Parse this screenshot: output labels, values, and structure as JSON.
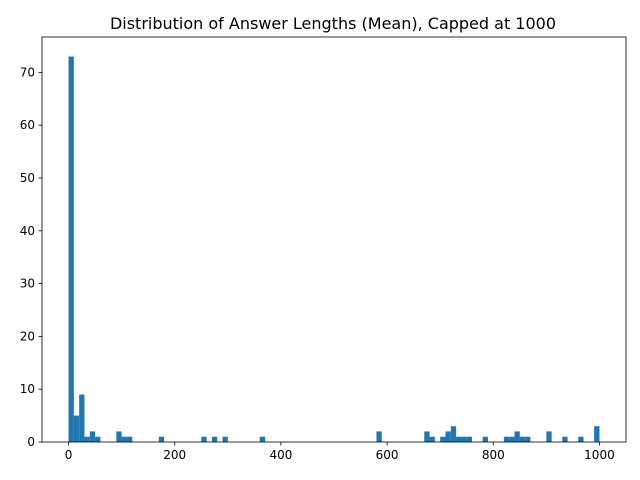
{
  "chart_data": {
    "type": "bar",
    "title": "Distribution of Answer Lengths (Mean), Capped at 1000",
    "xlabel": "",
    "ylabel": "",
    "xlim": [
      -50,
      1050
    ],
    "ylim": [
      0,
      76.7
    ],
    "x_ticks": [
      0,
      200,
      400,
      600,
      800,
      1000
    ],
    "y_ticks": [
      0,
      10,
      20,
      30,
      40,
      50,
      60,
      70
    ],
    "bin_width": 10,
    "bar_color": "#1f77b4",
    "grid": false,
    "bins": [
      {
        "x0": 0,
        "count": 73
      },
      {
        "x0": 10,
        "count": 5
      },
      {
        "x0": 20,
        "count": 9
      },
      {
        "x0": 30,
        "count": 1
      },
      {
        "x0": 40,
        "count": 2
      },
      {
        "x0": 50,
        "count": 1
      },
      {
        "x0": 90,
        "count": 2
      },
      {
        "x0": 100,
        "count": 1
      },
      {
        "x0": 110,
        "count": 1
      },
      {
        "x0": 170,
        "count": 1
      },
      {
        "x0": 250,
        "count": 1
      },
      {
        "x0": 270,
        "count": 1
      },
      {
        "x0": 290,
        "count": 1
      },
      {
        "x0": 360,
        "count": 1
      },
      {
        "x0": 580,
        "count": 2
      },
      {
        "x0": 670,
        "count": 2
      },
      {
        "x0": 680,
        "count": 1
      },
      {
        "x0": 700,
        "count": 1
      },
      {
        "x0": 710,
        "count": 2
      },
      {
        "x0": 720,
        "count": 3
      },
      {
        "x0": 730,
        "count": 1
      },
      {
        "x0": 740,
        "count": 1
      },
      {
        "x0": 750,
        "count": 1
      },
      {
        "x0": 780,
        "count": 1
      },
      {
        "x0": 820,
        "count": 1
      },
      {
        "x0": 830,
        "count": 1
      },
      {
        "x0": 840,
        "count": 2
      },
      {
        "x0": 850,
        "count": 1
      },
      {
        "x0": 860,
        "count": 1
      },
      {
        "x0": 900,
        "count": 2
      },
      {
        "x0": 930,
        "count": 1
      },
      {
        "x0": 960,
        "count": 1
      },
      {
        "x0": 990,
        "count": 3
      }
    ]
  }
}
